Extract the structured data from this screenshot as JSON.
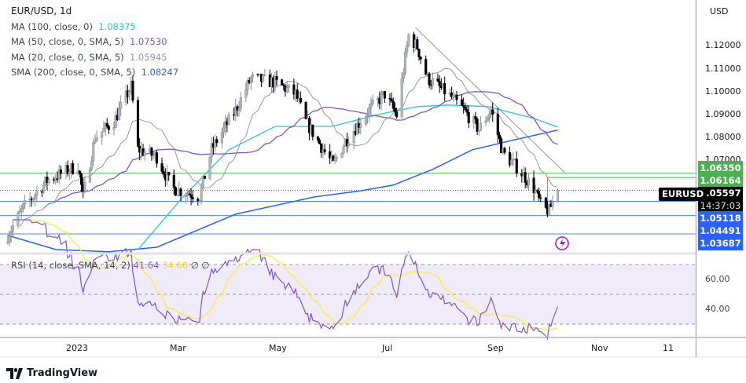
{
  "header": {
    "symbol_title": "EUR/USD, 1d",
    "currency": "USD"
  },
  "indicators": [
    {
      "label": "MA (100, close, 0)",
      "value": "1.08375",
      "color": "#26c6da"
    },
    {
      "label": "MA (50, close, 0, SMA, 5)",
      "value": "1.07530",
      "color": "#7e57c2"
    },
    {
      "label": "MA (20, close, 0, SMA, 5)",
      "value": "1.05945",
      "color": "#9598a1"
    },
    {
      "label": "SMA (200, close, 0, SMA, 5)",
      "value": "1.08247",
      "color": "#2962ff"
    }
  ],
  "rsi": {
    "label": "RSI (14, close, SMA, 14, 2)",
    "value": "41.64",
    "value_color": "#7e57c2",
    "ma_value": "34.60",
    "ma_color": "#ffeb3b",
    "extra1": "∅",
    "extra2": "∅",
    "ticks": [
      "60.00",
      "40.00"
    ]
  },
  "price_axis": {
    "ticks": [
      "1.12000",
      "1.11000",
      "1.10000",
      "1.09000",
      "1.08000",
      "1.07000"
    ]
  },
  "price_tags": {
    "green": [
      "1.06350",
      "1.06164"
    ],
    "current": {
      "symbol": "EURUSD",
      "price": "1.05597",
      "countdown": "14:37:03"
    },
    "blue": [
      "1.05118",
      "1.04491",
      "1.03687"
    ]
  },
  "time_axis": {
    "labels": [
      "2023",
      "Mar",
      "May",
      "Jul",
      "Sep",
      "Nov",
      "11"
    ]
  },
  "branding": {
    "name": "TradingView"
  },
  "chart_data": {
    "type": "candlestick",
    "price_keypoints": [
      [
        "2022-11-22",
        1.0362
      ],
      [
        "2022-12-01",
        1.0482
      ],
      [
        "2022-12-15",
        1.0603
      ],
      [
        "2023-01-02",
        1.067
      ],
      [
        "2023-01-05",
        1.0534
      ],
      [
        "2023-01-12",
        1.0793
      ],
      [
        "2023-01-23",
        1.0862
      ],
      [
        "2023-02-02",
        1.1017
      ],
      [
        "2023-02-06",
        1.0741
      ],
      [
        "2023-02-17",
        1.0707
      ],
      [
        "2023-02-26",
        1.0569
      ],
      [
        "2023-03-14",
        1.0534
      ],
      [
        "2023-03-21",
        1.0741
      ],
      [
        "2023-04-04",
        1.0914
      ],
      [
        "2023-04-13",
        1.1052
      ],
      [
        "2023-04-27",
        1.1034
      ],
      [
        "2023-05-09",
        1.0983
      ],
      [
        "2023-05-15",
        1.0862
      ],
      [
        "2023-05-25",
        1.0741
      ],
      [
        "2023-05-31",
        1.0672
      ],
      [
        "2023-06-07",
        1.0776
      ],
      [
        "2023-06-21",
        1.0914
      ],
      [
        "2023-06-30",
        1.0983
      ],
      [
        "2023-07-07",
        1.089
      ],
      [
        "2023-07-14",
        1.1241
      ],
      [
        "2023-07-19",
        1.119
      ],
      [
        "2023-07-25",
        1.1052
      ],
      [
        "2023-08-06",
        1.0983
      ],
      [
        "2023-08-15",
        1.0914
      ],
      [
        "2023-08-24",
        1.0827
      ],
      [
        "2023-08-31",
        1.0914
      ],
      [
        "2023-09-07",
        1.0724
      ],
      [
        "2023-09-16",
        1.0655
      ],
      [
        "2023-09-25",
        1.057
      ],
      [
        "2023-09-30",
        1.048
      ],
      [
        "2023-10-04",
        1.047
      ],
      [
        "2023-10-09",
        1.056
      ]
    ],
    "ma100_keypoints": [
      [
        "2023-02-06",
        1.03
      ],
      [
        "2023-03-03",
        1.052
      ],
      [
        "2023-03-31",
        1.0738
      ],
      [
        "2023-04-27",
        1.0841
      ],
      [
        "2023-05-30",
        1.0841
      ],
      [
        "2023-06-26",
        1.0893
      ],
      [
        "2023-07-19",
        1.0928
      ],
      [
        "2023-08-06",
        1.0935
      ],
      [
        "2023-08-29",
        1.0928
      ],
      [
        "2023-09-25",
        1.0876
      ],
      [
        "2023-10-09",
        1.0838
      ]
    ],
    "ma200_keypoints": [
      [
        "2022-11-22",
        1.0362
      ],
      [
        "2022-12-20",
        1.03
      ],
      [
        "2023-01-20",
        1.029
      ],
      [
        "2023-02-17",
        1.031
      ],
      [
        "2023-04-04",
        1.0455
      ],
      [
        "2023-05-20",
        1.0531
      ],
      [
        "2023-06-16",
        1.0558
      ],
      [
        "2023-07-05",
        1.0583
      ],
      [
        "2023-07-28",
        1.0652
      ],
      [
        "2023-08-20",
        1.0738
      ],
      [
        "2023-09-12",
        1.0779
      ],
      [
        "2023-10-09",
        1.0825
      ]
    ],
    "horizontal_levels": {
      "green": [
        1.0635,
        1.06164
      ],
      "blue": [
        1.05118,
        1.04491,
        1.03687
      ],
      "last": 1.05597
    },
    "trendline": [
      [
        "2023-07-18",
        1.1275
      ],
      [
        "2023-10-13",
        1.0638
      ]
    ],
    "price_range": [
      1.0325,
      1.131
    ],
    "rsi_levels": [
      70,
      50,
      30
    ],
    "colors": {
      "up": "#b2b5be",
      "down": "#000000",
      "ma20": "#9598a1",
      "ma50": "#7e57c2",
      "ma100": "#26c6da",
      "ma200": "#2962ff",
      "green_level": "#4caf50",
      "blue_level": "#2962ff",
      "rsi": "#7e57c2",
      "rsi_ma": "#ffeb3b",
      "rsi_band": "#efebf8"
    }
  }
}
